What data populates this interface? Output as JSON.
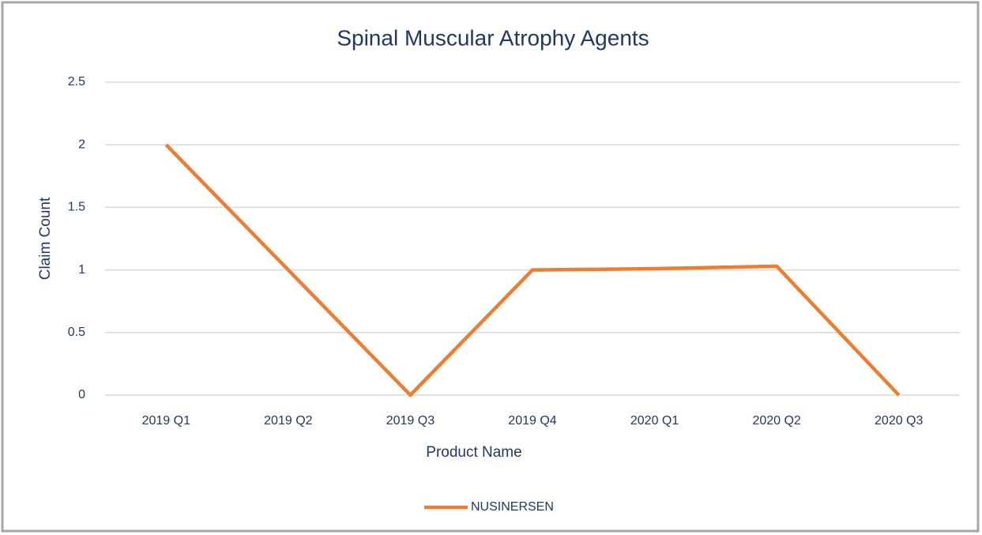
{
  "chart_data": {
    "type": "line",
    "title": "Spinal Muscular Atrophy Agents",
    "x_label": "Product Name",
    "y_label": "Claim Count",
    "categories": [
      "2019 Q1",
      "2019 Q2",
      "2019 Q3",
      "2019 Q4",
      "2020 Q1",
      "2020 Q2",
      "2020 Q3"
    ],
    "series": [
      {
        "name": "NUSINERSEN",
        "color": "#ed7d31",
        "values": [
          2,
          1,
          0,
          1,
          1.01,
          1.03,
          0
        ]
      }
    ],
    "ylim": [
      0,
      2.5
    ],
    "yticks": [
      0,
      0.5,
      1,
      1.5,
      2,
      2.5
    ],
    "grid": true,
    "legend": "bottom"
  }
}
